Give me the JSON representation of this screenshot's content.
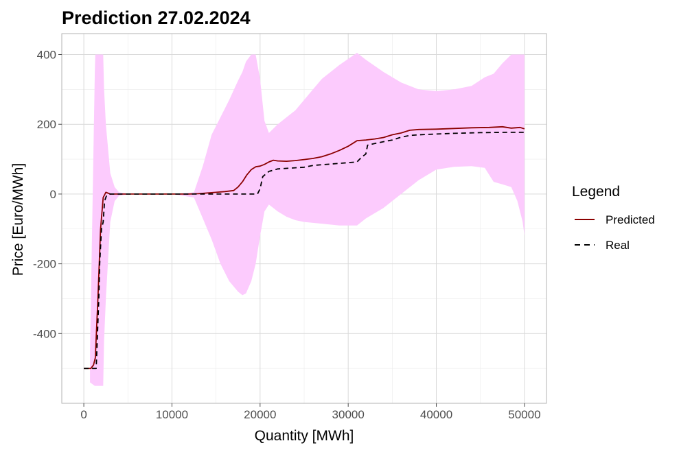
{
  "chart_data": {
    "type": "line",
    "title": "Prediction 27.02.2024",
    "xlabel": "Quantity [MWh]",
    "ylabel": "Price [Euro/MWh]",
    "xlim": [
      -2500,
      52500
    ],
    "ylim": [
      -600,
      460
    ],
    "x_ticks": [
      0,
      10000,
      20000,
      30000,
      40000,
      50000
    ],
    "x_tick_labels": [
      "0",
      "10000",
      "20000",
      "30000",
      "40000",
      "50000"
    ],
    "y_ticks": [
      -400,
      -200,
      0,
      200,
      400
    ],
    "y_tick_labels": [
      "-400",
      "-200",
      "0",
      "200",
      "400"
    ],
    "grid": true,
    "legend": {
      "title": "Legend",
      "position": "right",
      "entries": [
        {
          "label": "Predicted",
          "color": "#8b0000",
          "style": "solid"
        },
        {
          "label": "Real",
          "color": "#000000",
          "style": "dashed"
        }
      ]
    },
    "series": [
      {
        "name": "Predicted",
        "color": "#8b0000",
        "style": "solid",
        "x": [
          0,
          800,
          1100,
          1300,
          1600,
          1900,
          2200,
          2500,
          3000,
          4000,
          6000,
          8000,
          10000,
          12000,
          13000,
          14000,
          15000,
          16000,
          17000,
          17500,
          18000,
          18500,
          19000,
          19500,
          20000,
          20500,
          21000,
          21500,
          22000,
          23000,
          24000,
          25000,
          26000,
          27000,
          28000,
          29000,
          30000,
          30500,
          31000,
          32000,
          33000,
          34000,
          35000,
          36000,
          37000,
          38000,
          40000,
          42000,
          44000,
          46000,
          47500,
          48500,
          49500,
          50000
        ],
        "y": [
          -500,
          -500,
          -490,
          -470,
          -300,
          -100,
          -10,
          5,
          0,
          0,
          0,
          0,
          0,
          0,
          1,
          3,
          5,
          7,
          10,
          20,
          35,
          55,
          70,
          78,
          80,
          85,
          92,
          97,
          95,
          94,
          96,
          99,
          102,
          107,
          115,
          125,
          137,
          145,
          153,
          155,
          158,
          162,
          170,
          175,
          183,
          185,
          186,
          188,
          190,
          191,
          193,
          189,
          191,
          187
        ]
      },
      {
        "name": "Real",
        "color": "#000000",
        "style": "dashed",
        "x": [
          0,
          1400,
          1700,
          1800,
          2000,
          2200,
          2350,
          2600,
          3000,
          4000,
          10000,
          12000,
          14000,
          16000,
          18000,
          19700,
          20000,
          20300,
          21000,
          22000,
          25000,
          26000,
          29000,
          31000,
          31500,
          32000,
          32200,
          33000,
          34000,
          35000,
          36000,
          37000,
          38000,
          40000,
          42000,
          45000,
          48000,
          50000
        ],
        "y": [
          -500,
          -500,
          -300,
          -200,
          -100,
          -80,
          -20,
          -3,
          0,
          0,
          0,
          0,
          0,
          0,
          0,
          0,
          15,
          50,
          65,
          72,
          77,
          82,
          88,
          92,
          105,
          115,
          140,
          145,
          150,
          155,
          163,
          168,
          170,
          172,
          174,
          176,
          177,
          177
        ]
      }
    ],
    "band": {
      "color": "#fccbfd",
      "x": [
        700,
        1250,
        1300,
        1400,
        1550,
        1600,
        1800,
        2000,
        2200,
        2300,
        2500,
        3000,
        3500,
        4000,
        5000,
        7000,
        10000,
        12500,
        13500,
        14500,
        15500,
        16500,
        17500,
        18000,
        18400,
        19000,
        19500,
        20000,
        20500,
        21000,
        22000,
        23000,
        24000,
        25000,
        27000,
        29000,
        31000,
        32000,
        34000,
        36000,
        38000,
        40000,
        42000,
        44000,
        45500,
        46500,
        47500,
        48500,
        49200,
        49800,
        50000
      ],
      "upper": [
        -450,
        350,
        400,
        400,
        400,
        400,
        400,
        400,
        400,
        300,
        200,
        60,
        20,
        5,
        1,
        0,
        0,
        5,
        80,
        170,
        220,
        270,
        325,
        350,
        380,
        400,
        400,
        330,
        210,
        175,
        200,
        220,
        240,
        270,
        330,
        370,
        405,
        385,
        350,
        320,
        300,
        295,
        300,
        310,
        335,
        345,
        375,
        400,
        400,
        400,
        400
      ],
      "lower": [
        -540,
        -550,
        -550,
        -550,
        -550,
        -550,
        -550,
        -550,
        -550,
        -420,
        -300,
        -80,
        -20,
        -5,
        -1,
        0,
        0,
        -10,
        -70,
        -130,
        -200,
        -250,
        -280,
        -290,
        -285,
        -250,
        -200,
        -120,
        -50,
        -30,
        -50,
        -65,
        -75,
        -80,
        -85,
        -90,
        -90,
        -70,
        -40,
        0,
        40,
        70,
        78,
        80,
        75,
        35,
        28,
        20,
        -20,
        -80,
        -120
      ]
    }
  }
}
